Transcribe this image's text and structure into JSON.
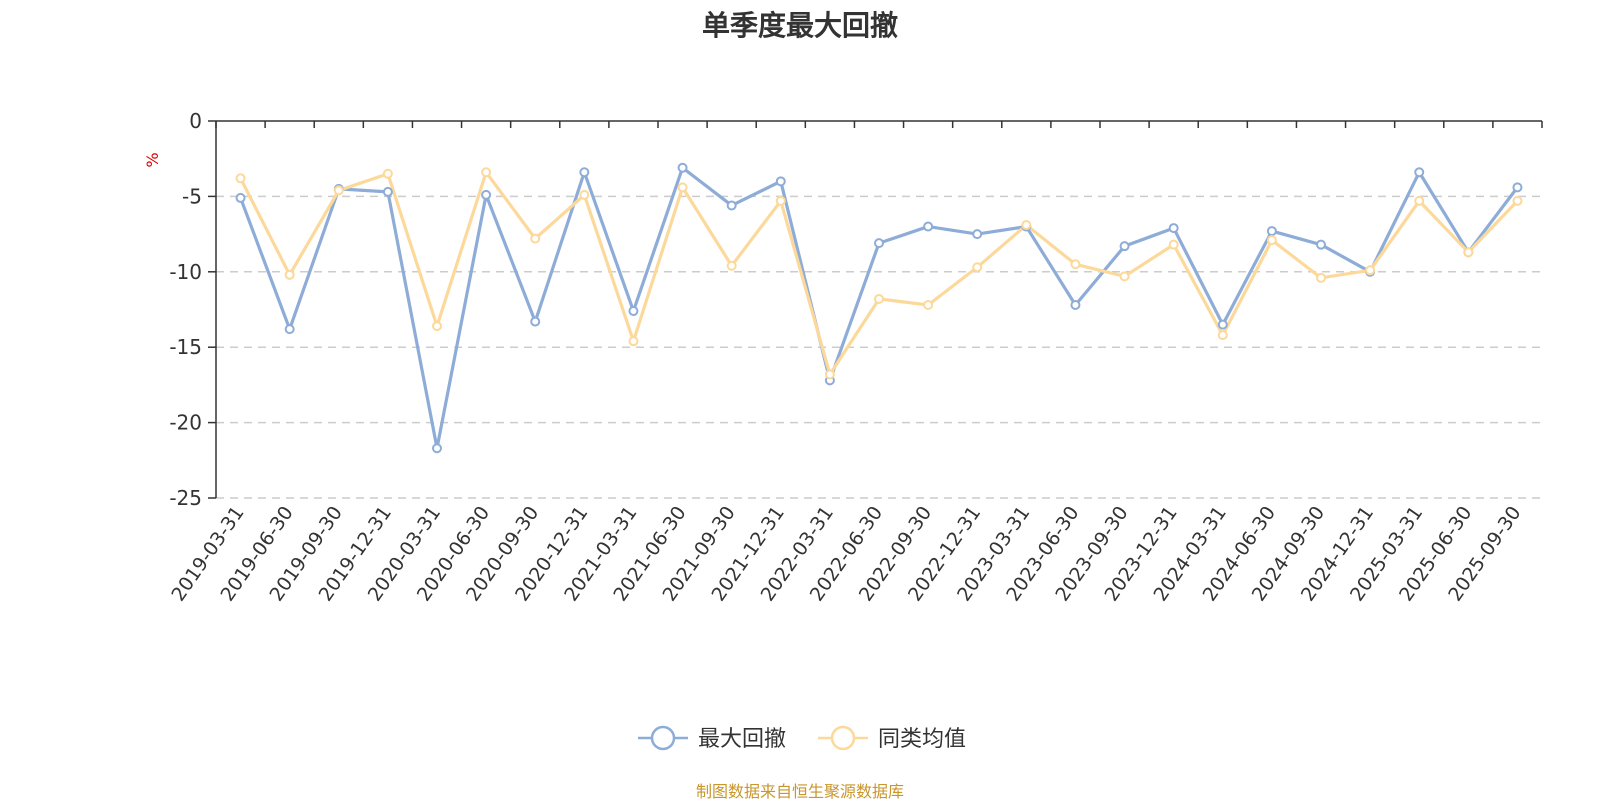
{
  "page": {
    "title": "单季度最大回撤",
    "source": "制图数据来自恒生聚源数据库",
    "source_color": "#c8962c"
  },
  "chart_data": {
    "type": "line",
    "title": "单季度最大回撤",
    "ylabel": "%",
    "xlabel": "",
    "ylim": [
      -25,
      0
    ],
    "yticks": [
      0,
      -5,
      -10,
      -15,
      -20,
      -25
    ],
    "grid": true,
    "legend_position": "bottom-center",
    "categories": [
      "2019-03-31",
      "2019-06-30",
      "2019-09-30",
      "2019-12-31",
      "2020-03-31",
      "2020-06-30",
      "2020-09-30",
      "2020-12-31",
      "2021-03-31",
      "2021-06-30",
      "2021-09-30",
      "2021-12-31",
      "2022-03-31",
      "2022-06-30",
      "2022-09-30",
      "2022-12-31",
      "2023-03-31",
      "2023-06-30",
      "2023-09-30",
      "2023-12-31",
      "2024-03-31",
      "2024-06-30",
      "2024-09-30",
      "2024-12-31",
      "2025-03-31",
      "2025-06-30",
      "2025-09-30"
    ],
    "series": [
      {
        "name": "最大回撤",
        "color": "#8eacd8",
        "values": [
          -5.1,
          -13.8,
          -4.5,
          -4.7,
          -21.7,
          -4.9,
          -13.3,
          -3.4,
          -12.6,
          -3.1,
          -5.6,
          -4.0,
          -17.2,
          -8.1,
          -7.0,
          -7.5,
          -7.0,
          -12.2,
          -8.3,
          -7.1,
          -13.5,
          -7.3,
          -8.2,
          -10.0,
          -3.4,
          -8.7,
          -4.4
        ]
      },
      {
        "name": "同类均值",
        "color": "#fcd99a",
        "values": [
          -3.8,
          -10.2,
          -4.6,
          -3.5,
          -13.6,
          -3.4,
          -7.8,
          -4.9,
          -14.6,
          -4.4,
          -9.6,
          -5.3,
          -16.8,
          -11.8,
          -12.2,
          -9.7,
          -6.9,
          -9.5,
          -10.3,
          -8.2,
          -14.2,
          -7.9,
          -10.4,
          -9.9,
          -5.3,
          -8.7,
          -5.3
        ]
      }
    ]
  }
}
